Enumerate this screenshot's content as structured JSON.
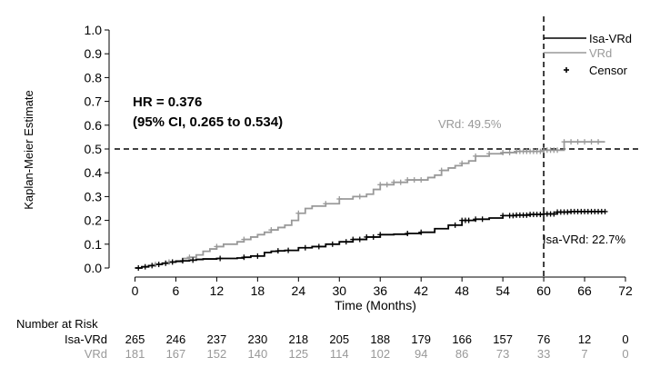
{
  "chart_data": {
    "type": "line",
    "subtype": "kaplan-meier",
    "ylabel": "Kaplan-Meier Estimate",
    "xlabel": "Time (Months)",
    "xlim": [
      -3,
      74
    ],
    "ylim": [
      0,
      1.0
    ],
    "x_ticks": [
      0,
      6,
      12,
      18,
      24,
      30,
      36,
      42,
      48,
      54,
      60,
      66,
      72
    ],
    "y_ticks": [
      0.0,
      0.1,
      0.2,
      0.3,
      0.4,
      0.5,
      0.6,
      0.7,
      0.8,
      0.9,
      1.0
    ],
    "reference_lines": [
      {
        "axis": "y",
        "value": 0.5,
        "style": "dashed"
      },
      {
        "axis": "x",
        "value": 60,
        "style": "dashed"
      }
    ],
    "legend": {
      "position": "top-right",
      "entries": [
        {
          "label": "Isa-VRd",
          "type": "line",
          "color": "#000000"
        },
        {
          "label": "VRd",
          "type": "line",
          "color": "#999999"
        },
        {
          "label": "Censor",
          "type": "marker",
          "color": "#000000"
        }
      ]
    },
    "annotations": {
      "hr_line1": "HR = 0.376",
      "hr_line2": "(95% CI, 0.265 to 0.534)",
      "vrd_label": "VRd: 49.5%",
      "isa_label": "Isa-VRd: 22.7%"
    },
    "series": [
      {
        "name": "Isa-VRd",
        "color": "#000000",
        "x": [
          0,
          1,
          2,
          3,
          4,
          5,
          6,
          7,
          8,
          9,
          10,
          12,
          14,
          15,
          16,
          17,
          18,
          19,
          20,
          21,
          22,
          24,
          26,
          28,
          30,
          32,
          34,
          36,
          38,
          40,
          42,
          44,
          46,
          48,
          50,
          52,
          54,
          56,
          58,
          60,
          62,
          64,
          66,
          69
        ],
        "y": [
          0.0,
          0.005,
          0.01,
          0.015,
          0.02,
          0.025,
          0.028,
          0.03,
          0.033,
          0.036,
          0.038,
          0.04,
          0.04,
          0.042,
          0.045,
          0.05,
          0.05,
          0.065,
          0.07,
          0.072,
          0.074,
          0.085,
          0.09,
          0.1,
          0.11,
          0.12,
          0.13,
          0.14,
          0.142,
          0.145,
          0.15,
          0.165,
          0.18,
          0.2,
          0.205,
          0.21,
          0.22,
          0.222,
          0.225,
          0.227,
          0.235,
          0.237,
          0.237,
          0.237
        ],
        "censor_x": [
          0.5,
          1.5,
          2.5,
          3.5,
          4.5,
          5.5,
          7,
          8.5,
          12.5,
          16,
          18,
          21,
          22.5,
          25,
          27,
          29,
          31,
          32,
          33,
          34,
          35,
          36,
          40,
          42,
          47,
          48,
          48.5,
          49,
          50,
          51,
          54,
          55,
          55.5,
          56,
          56.5,
          57,
          57.5,
          58,
          58.5,
          59,
          59.5,
          60,
          60.5,
          61,
          61.5,
          62,
          62.5,
          63,
          63.5,
          64,
          64.5,
          65,
          65.5,
          66,
          66.5,
          67,
          67.5,
          68,
          68.5,
          69
        ]
      },
      {
        "name": "VRd",
        "color": "#999999",
        "x": [
          0,
          1,
          2,
          3,
          4,
          5,
          6,
          7,
          8,
          9,
          10,
          11,
          12,
          13,
          14,
          15,
          16,
          17,
          18,
          19,
          20,
          21,
          22,
          23,
          24,
          25,
          26,
          28,
          30,
          32,
          34,
          35,
          36,
          38,
          40,
          42,
          43,
          44,
          45,
          46,
          47,
          48,
          49,
          50,
          52,
          54,
          56,
          58,
          60,
          62,
          63,
          65,
          69
        ],
        "y": [
          0.0,
          0.005,
          0.01,
          0.015,
          0.02,
          0.025,
          0.03,
          0.04,
          0.045,
          0.055,
          0.07,
          0.08,
          0.09,
          0.1,
          0.1,
          0.11,
          0.12,
          0.13,
          0.14,
          0.15,
          0.16,
          0.17,
          0.18,
          0.2,
          0.23,
          0.25,
          0.26,
          0.27,
          0.29,
          0.3,
          0.31,
          0.33,
          0.35,
          0.36,
          0.37,
          0.37,
          0.38,
          0.39,
          0.41,
          0.42,
          0.43,
          0.44,
          0.45,
          0.47,
          0.48,
          0.485,
          0.49,
          0.49,
          0.495,
          0.495,
          0.53,
          0.53,
          0.53
        ],
        "censor_x": [
          3,
          5,
          8,
          12,
          16,
          20,
          24,
          28,
          30,
          33,
          36,
          37,
          38,
          39,
          40,
          41,
          42,
          45,
          48,
          50,
          52,
          54,
          55,
          56,
          56.5,
          57,
          57.5,
          58,
          58.5,
          59,
          59.5,
          60,
          60.5,
          61,
          61.5,
          62,
          63,
          64,
          65,
          66,
          67,
          68
        ]
      }
    ],
    "risk_table": {
      "title": "Number at Risk",
      "rows": [
        {
          "label": "Isa-VRd",
          "color": "#000000",
          "values": [
            "265",
            "246",
            "237",
            "230",
            "218",
            "205",
            "188",
            "179",
            "166",
            "157",
            "76",
            "12",
            "0"
          ]
        },
        {
          "label": "VRd",
          "color": "#999999",
          "values": [
            "181",
            "167",
            "152",
            "140",
            "125",
            "114",
            "102",
            "94",
            "86",
            "73",
            "33",
            "7",
            "0"
          ]
        }
      ]
    }
  }
}
